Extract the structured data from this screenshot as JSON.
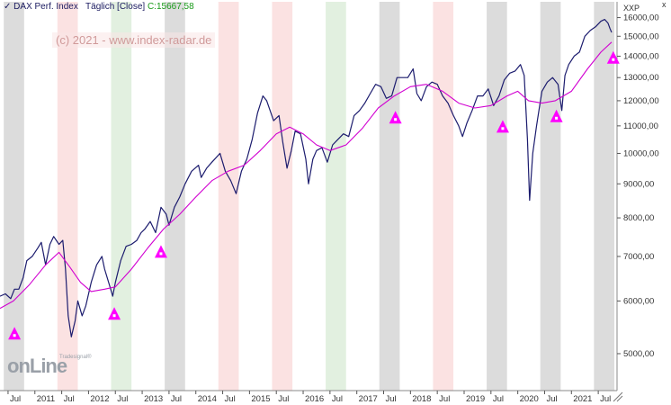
{
  "header": {
    "title": "DAX Perf. Index",
    "period": "Täglich [Close]",
    "close_label": "C:15667,58"
  },
  "watermark": "(c) 2021 - www.index-radar.de",
  "unit_label": "XXP",
  "close_icon_glyph": "x",
  "logo": {
    "main": "onLine",
    "small": "Tradesignal®"
  },
  "colors": {
    "price": "#1c1c6e",
    "ma": "#d100d1",
    "marker": "#ff00ff",
    "band_gray": "#dcdcdc",
    "band_red": "#fbe2e2",
    "band_green": "#e2f0e0"
  },
  "chart_data": {
    "type": "line",
    "title": "DAX Perf. Index",
    "xlabel": "",
    "ylabel": "",
    "y_scale": "log",
    "ylim": [
      4400,
      16900
    ],
    "xlim": [
      2010.35,
      2021.85
    ],
    "grid": false,
    "y_ticks": [
      5000,
      6000,
      7000,
      8000,
      9000,
      10000,
      11000,
      12000,
      13000,
      14000,
      15000,
      16000
    ],
    "y_tick_labels": [
      "5000,00",
      "6000,00",
      "7000,00",
      "8000,00",
      "9000,00",
      "10000,00",
      "11000,00",
      "12000,00",
      "13000,00",
      "14000,00",
      "15000,00",
      "16000,00"
    ],
    "x_ticks": [
      {
        "x": 2010.5,
        "label": "Jul"
      },
      {
        "x": 2011.0,
        "label": "2011"
      },
      {
        "x": 2011.5,
        "label": "Jul"
      },
      {
        "x": 2012.0,
        "label": "2012"
      },
      {
        "x": 2012.5,
        "label": "Jul"
      },
      {
        "x": 2013.0,
        "label": "2013"
      },
      {
        "x": 2013.5,
        "label": "Jul"
      },
      {
        "x": 2014.0,
        "label": "2014"
      },
      {
        "x": 2014.5,
        "label": "Jul"
      },
      {
        "x": 2015.0,
        "label": "2015"
      },
      {
        "x": 2015.5,
        "label": "Jul"
      },
      {
        "x": 2016.0,
        "label": "2016"
      },
      {
        "x": 2016.5,
        "label": "Jul"
      },
      {
        "x": 2017.0,
        "label": "2017"
      },
      {
        "x": 2017.5,
        "label": "Jul"
      },
      {
        "x": 2018.0,
        "label": "2018"
      },
      {
        "x": 2018.5,
        "label": "Jul"
      },
      {
        "x": 2019.0,
        "label": "2019"
      },
      {
        "x": 2019.5,
        "label": "Jul"
      },
      {
        "x": 2020.0,
        "label": "2020"
      },
      {
        "x": 2020.5,
        "label": "Jul"
      },
      {
        "x": 2021.0,
        "label": "2021"
      },
      {
        "x": 2021.5,
        "label": "Jul"
      }
    ],
    "bands": [
      {
        "from": 2010.42,
        "to": 2010.8,
        "color": "gray"
      },
      {
        "from": 2011.42,
        "to": 2011.8,
        "color": "red"
      },
      {
        "from": 2012.42,
        "to": 2012.8,
        "color": "green"
      },
      {
        "from": 2013.42,
        "to": 2013.8,
        "color": "gray"
      },
      {
        "from": 2014.42,
        "to": 2014.8,
        "color": "red"
      },
      {
        "from": 2015.42,
        "to": 2015.8,
        "color": "red"
      },
      {
        "from": 2016.42,
        "to": 2016.8,
        "color": "green"
      },
      {
        "from": 2017.42,
        "to": 2017.8,
        "color": "gray"
      },
      {
        "from": 2018.42,
        "to": 2018.8,
        "color": "red"
      },
      {
        "from": 2019.42,
        "to": 2019.8,
        "color": "gray"
      },
      {
        "from": 2020.42,
        "to": 2020.8,
        "color": "gray"
      },
      {
        "from": 2021.42,
        "to": 2021.8,
        "color": "gray"
      }
    ],
    "series": [
      {
        "kind": "price",
        "points": [
          [
            2010.35,
            6100
          ],
          [
            2010.45,
            6150
          ],
          [
            2010.55,
            6050
          ],
          [
            2010.62,
            6250
          ],
          [
            2010.7,
            6250
          ],
          [
            2010.78,
            6500
          ],
          [
            2010.85,
            6900
          ],
          [
            2010.95,
            7000
          ],
          [
            2011.05,
            7200
          ],
          [
            2011.12,
            7350
          ],
          [
            2011.2,
            6800
          ],
          [
            2011.28,
            7300
          ],
          [
            2011.35,
            7500
          ],
          [
            2011.45,
            7300
          ],
          [
            2011.52,
            7400
          ],
          [
            2011.57,
            6700
          ],
          [
            2011.62,
            5700
          ],
          [
            2011.68,
            5300
          ],
          [
            2011.75,
            5600
          ],
          [
            2011.8,
            6000
          ],
          [
            2011.88,
            5700
          ],
          [
            2011.95,
            5900
          ],
          [
            2012.05,
            6400
          ],
          [
            2012.15,
            6800
          ],
          [
            2012.25,
            7000
          ],
          [
            2012.3,
            6700
          ],
          [
            2012.4,
            6300
          ],
          [
            2012.45,
            6100
          ],
          [
            2012.5,
            6400
          ],
          [
            2012.6,
            6900
          ],
          [
            2012.7,
            7250
          ],
          [
            2012.8,
            7300
          ],
          [
            2012.9,
            7400
          ],
          [
            2012.98,
            7600
          ],
          [
            2013.05,
            7700
          ],
          [
            2013.15,
            7900
          ],
          [
            2013.25,
            7600
          ],
          [
            2013.35,
            8300
          ],
          [
            2013.45,
            8100
          ],
          [
            2013.5,
            7800
          ],
          [
            2013.6,
            8300
          ],
          [
            2013.7,
            8600
          ],
          [
            2013.8,
            9000
          ],
          [
            2013.92,
            9400
          ],
          [
            2014.05,
            9600
          ],
          [
            2014.1,
            9200
          ],
          [
            2014.2,
            9500
          ],
          [
            2014.3,
            9700
          ],
          [
            2014.45,
            10000
          ],
          [
            2014.55,
            9400
          ],
          [
            2014.65,
            9100
          ],
          [
            2014.75,
            8700
          ],
          [
            2014.85,
            9400
          ],
          [
            2014.95,
            9800
          ],
          [
            2015.05,
            10500
          ],
          [
            2015.15,
            11500
          ],
          [
            2015.25,
            12200
          ],
          [
            2015.32,
            12000
          ],
          [
            2015.45,
            11200
          ],
          [
            2015.55,
            11400
          ],
          [
            2015.62,
            10400
          ],
          [
            2015.7,
            9500
          ],
          [
            2015.78,
            10100
          ],
          [
            2015.85,
            10800
          ],
          [
            2015.95,
            10700
          ],
          [
            2016.05,
            9800
          ],
          [
            2016.1,
            9000
          ],
          [
            2016.18,
            9800
          ],
          [
            2016.25,
            10100
          ],
          [
            2016.35,
            10200
          ],
          [
            2016.45,
            9700
          ],
          [
            2016.55,
            10300
          ],
          [
            2016.65,
            10500
          ],
          [
            2016.75,
            10700
          ],
          [
            2016.85,
            10600
          ],
          [
            2016.95,
            11400
          ],
          [
            2017.05,
            11600
          ],
          [
            2017.15,
            11900
          ],
          [
            2017.25,
            12300
          ],
          [
            2017.35,
            12700
          ],
          [
            2017.45,
            12600
          ],
          [
            2017.55,
            12100
          ],
          [
            2017.65,
            12200
          ],
          [
            2017.75,
            13000
          ],
          [
            2017.85,
            13000
          ],
          [
            2017.95,
            13000
          ],
          [
            2018.05,
            13400
          ],
          [
            2018.12,
            12300
          ],
          [
            2018.2,
            12000
          ],
          [
            2018.3,
            12600
          ],
          [
            2018.4,
            12800
          ],
          [
            2018.5,
            12700
          ],
          [
            2018.6,
            12200
          ],
          [
            2018.7,
            11900
          ],
          [
            2018.8,
            11400
          ],
          [
            2018.9,
            11000
          ],
          [
            2018.97,
            10600
          ],
          [
            2019.05,
            11100
          ],
          [
            2019.15,
            11600
          ],
          [
            2019.25,
            12200
          ],
          [
            2019.35,
            12200
          ],
          [
            2019.45,
            12500
          ],
          [
            2019.55,
            11800
          ],
          [
            2019.65,
            12200
          ],
          [
            2019.75,
            12900
          ],
          [
            2019.85,
            13200
          ],
          [
            2019.95,
            13300
          ],
          [
            2020.05,
            13600
          ],
          [
            2020.12,
            13100
          ],
          [
            2020.18,
            10500
          ],
          [
            2020.22,
            8500
          ],
          [
            2020.28,
            10000
          ],
          [
            2020.35,
            11000
          ],
          [
            2020.45,
            12400
          ],
          [
            2020.55,
            12800
          ],
          [
            2020.65,
            13000
          ],
          [
            2020.75,
            12700
          ],
          [
            2020.82,
            11600
          ],
          [
            2020.88,
            13100
          ],
          [
            2020.95,
            13600
          ],
          [
            2021.05,
            14000
          ],
          [
            2021.15,
            14200
          ],
          [
            2021.25,
            15000
          ],
          [
            2021.35,
            15300
          ],
          [
            2021.45,
            15500
          ],
          [
            2021.55,
            15800
          ],
          [
            2021.62,
            15900
          ],
          [
            2021.68,
            15700
          ],
          [
            2021.72,
            15400
          ],
          [
            2021.75,
            15200
          ]
        ]
      },
      {
        "kind": "moving_average",
        "points": [
          [
            2010.35,
            5850
          ],
          [
            2010.6,
            6000
          ],
          [
            2010.9,
            6350
          ],
          [
            2011.2,
            6800
          ],
          [
            2011.45,
            7100
          ],
          [
            2011.65,
            6750
          ],
          [
            2011.85,
            6400
          ],
          [
            2012.05,
            6200
          ],
          [
            2012.3,
            6250
          ],
          [
            2012.5,
            6300
          ],
          [
            2012.8,
            6700
          ],
          [
            2013.1,
            7200
          ],
          [
            2013.4,
            7700
          ],
          [
            2013.7,
            8100
          ],
          [
            2014.0,
            8600
          ],
          [
            2014.3,
            9100
          ],
          [
            2014.6,
            9400
          ],
          [
            2014.9,
            9600
          ],
          [
            2015.2,
            10100
          ],
          [
            2015.5,
            10700
          ],
          [
            2015.75,
            10950
          ],
          [
            2016.0,
            10700
          ],
          [
            2016.25,
            10300
          ],
          [
            2016.5,
            10100
          ],
          [
            2016.8,
            10300
          ],
          [
            2017.1,
            10900
          ],
          [
            2017.4,
            11700
          ],
          [
            2017.7,
            12200
          ],
          [
            2018.0,
            12600
          ],
          [
            2018.3,
            12700
          ],
          [
            2018.6,
            12400
          ],
          [
            2018.9,
            11900
          ],
          [
            2019.2,
            11700
          ],
          [
            2019.5,
            11800
          ],
          [
            2019.8,
            12200
          ],
          [
            2020.0,
            12400
          ],
          [
            2020.2,
            12000
          ],
          [
            2020.45,
            11900
          ],
          [
            2020.7,
            12000
          ],
          [
            2021.0,
            12400
          ],
          [
            2021.3,
            13400
          ],
          [
            2021.55,
            14200
          ],
          [
            2021.75,
            14700
          ]
        ]
      }
    ],
    "markers": [
      {
        "x": 2010.62,
        "y": 5350
      },
      {
        "x": 2012.48,
        "y": 5730
      },
      {
        "x": 2013.35,
        "y": 7100
      },
      {
        "x": 2017.72,
        "y": 11300
      },
      {
        "x": 2019.72,
        "y": 10950
      },
      {
        "x": 2020.72,
        "y": 11350
      },
      {
        "x": 2021.78,
        "y": 13900
      }
    ]
  }
}
